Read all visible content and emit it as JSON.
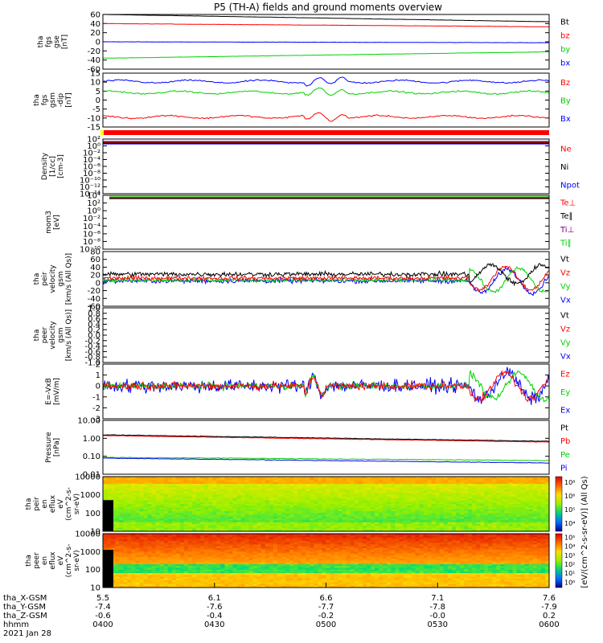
{
  "title": "P5 (TH-A) fields and ground moments overview",
  "colors": {
    "black": "#000000",
    "red": "#ff0000",
    "green": "#00d000",
    "blue": "#0000ff",
    "purple": "#800080",
    "yellow": "#ffff00"
  },
  "xaxis": {
    "ticks": [
      "0400",
      "0430",
      "0500",
      "0530",
      "0600"
    ],
    "ephemeris": [
      {
        "label": "tha_X-GSM",
        "values": [
          "5.5",
          "6.1",
          "6.6",
          "7.1",
          "7.6"
        ]
      },
      {
        "label": "tha_Y-GSM",
        "values": [
          "-7.4",
          "-7.6",
          "-7.7",
          "-7.8",
          "-7.9"
        ]
      },
      {
        "label": "tha_Z-GSM",
        "values": [
          "-0.6",
          "-0.4",
          "-0.2",
          "-0.0",
          "0.2"
        ]
      },
      {
        "label": "hhmm",
        "values": [
          "0400",
          "0430",
          "0500",
          "0530",
          "0600"
        ]
      }
    ],
    "date": "2021 Jan 28"
  },
  "chart_data": [
    {
      "id": "p1",
      "type": "line",
      "ylabel": [
        "tha",
        "fgs",
        "gse",
        "[nT]"
      ],
      "yticks": [
        "60",
        "40",
        "20",
        "0",
        "-20",
        "-40",
        "-60"
      ],
      "ylim": [
        -60,
        60
      ],
      "legend": [
        {
          "name": "Bt",
          "color": "#000000"
        },
        {
          "name": "bz",
          "color": "#ff0000"
        },
        {
          "name": "by",
          "color": "#00d000"
        },
        {
          "name": "bx",
          "color": "#0000ff"
        }
      ],
      "series": [
        {
          "name": "Bt",
          "start": 60,
          "end": 44
        },
        {
          "name": "bz",
          "start": 40,
          "end": 33
        },
        {
          "name": "by",
          "start": -36,
          "end": -22
        },
        {
          "name": "bx",
          "start": 0,
          "end": -2
        }
      ]
    },
    {
      "id": "p2",
      "type": "line",
      "ylabel": [
        "tha",
        "fgs",
        "gsm",
        "-dip",
        "[nT]"
      ],
      "yticks": [
        "15",
        "10",
        "5",
        "0",
        "-5",
        "-10",
        "-15"
      ],
      "ylim": [
        -17,
        15
      ],
      "legend": [
        {
          "name": "Bz",
          "color": "#ff0000"
        },
        {
          "name": "By",
          "color": "#00d000"
        },
        {
          "name": "Bx",
          "color": "#0000ff"
        }
      ],
      "series": [
        {
          "name": "Bx",
          "level": 10
        },
        {
          "name": "By",
          "level": 3.5
        },
        {
          "name": "Bz",
          "level": -11
        }
      ]
    },
    {
      "id": "p3",
      "type": "line",
      "ylabel": [
        "Density",
        "[1/cc]",
        "[cm-3]"
      ],
      "yticks": [
        "10²",
        "10⁰",
        "10⁻²",
        "10⁻⁴",
        "10⁻⁶",
        "10⁻⁸",
        "10⁻¹⁰",
        "10⁻¹²",
        "10⁻¹⁴"
      ],
      "legend": [
        {
          "name": "Ne",
          "color": "#ff0000"
        },
        {
          "name": "Ni",
          "color": "#000000"
        },
        {
          "name": "Npot",
          "color": "#0000ff"
        }
      ]
    },
    {
      "id": "p4",
      "type": "line",
      "ylabel": [
        "mom3",
        "[eV]"
      ],
      "yticks": [
        "10⁴",
        "10²",
        "10⁰",
        "10⁻²",
        "10⁻⁴",
        "10⁻⁶",
        "10⁻⁸",
        "10⁻¹⁰"
      ],
      "legend": [
        {
          "name": "Te⊥",
          "color": "#ff0000"
        },
        {
          "name": "Te∥",
          "color": "#000000"
        },
        {
          "name": "Ti⊥",
          "color": "#800080"
        },
        {
          "name": "Ti∥",
          "color": "#00d000"
        }
      ]
    },
    {
      "id": "p5",
      "type": "line",
      "ylabel": [
        "tha",
        "peir",
        "velocity",
        "gsm",
        "[km/s (All Qs)]"
      ],
      "yticks": [
        "80",
        "60",
        "40",
        "20",
        "0",
        "-20",
        "-40",
        "-60"
      ],
      "ylim": [
        -60,
        80
      ],
      "legend": [
        {
          "name": "Vt",
          "color": "#000000"
        },
        {
          "name": "Vz",
          "color": "#ff0000"
        },
        {
          "name": "Vy",
          "color": "#00d000"
        },
        {
          "name": "Vx",
          "color": "#0000ff"
        }
      ]
    },
    {
      "id": "p6",
      "type": "line",
      "ylabel": [
        "tha",
        "peer",
        "velocity",
        "gsm",
        "[km/s (All Qs)]"
      ],
      "yticks": [
        "1.0",
        "0.8",
        "0.6",
        "0.4",
        "0.2",
        "0.0",
        "-0.2",
        "-0.4",
        "-0.6",
        "-0.8",
        "-1.0"
      ],
      "ylim": [
        -1,
        1
      ],
      "legend": [
        {
          "name": "Vt",
          "color": "#000000"
        },
        {
          "name": "Vz",
          "color": "#ff0000"
        },
        {
          "name": "Vy",
          "color": "#00d000"
        },
        {
          "name": "Vx",
          "color": "#0000ff"
        }
      ]
    },
    {
      "id": "p7",
      "type": "line",
      "ylabel": [
        "E=-VxB",
        "[mV/m]"
      ],
      "yticks": [
        "2",
        "1",
        "0",
        "-1",
        "-2",
        "-3"
      ],
      "ylim": [
        -3,
        2
      ],
      "legend": [
        {
          "name": "Ez",
          "color": "#ff0000"
        },
        {
          "name": "Ey",
          "color": "#00d000"
        },
        {
          "name": "Ex",
          "color": "#0000ff"
        }
      ]
    },
    {
      "id": "p8",
      "type": "line",
      "ylabel": [
        "Pressure",
        "[nPa]"
      ],
      "yticks": [
        "10.00",
        "1.00",
        "0.10",
        "0.01"
      ],
      "legend": [
        {
          "name": "Pt",
          "color": "#000000"
        },
        {
          "name": "Pb",
          "color": "#ff0000"
        },
        {
          "name": "Pe",
          "color": "#00d000"
        },
        {
          "name": "Pi",
          "color": "#0000ff"
        }
      ]
    },
    {
      "id": "p9",
      "type": "heatmap",
      "ylabel": [
        "tha",
        "peir",
        "en",
        "eflux",
        "eV",
        "(cm^2-s-",
        "sr-eV)"
      ],
      "yticks": [
        "10000",
        "1000",
        "100",
        "10"
      ]
    },
    {
      "id": "p10",
      "type": "heatmap",
      "ylabel": [
        "tha",
        "peer",
        "en",
        "eflux",
        "eV",
        "(cm^2-s-",
        "sr-eV)"
      ],
      "yticks": [
        "10000",
        "1000",
        "100",
        "10"
      ]
    }
  ],
  "colorbar": {
    "label": "[eV/(cm^2-s-sr-eV)] (All Qs)",
    "ticks": [
      "10⁸",
      "10⁶",
      "10⁵",
      "10⁴",
      "10³",
      "10²",
      "10¹",
      "10⁰"
    ]
  }
}
